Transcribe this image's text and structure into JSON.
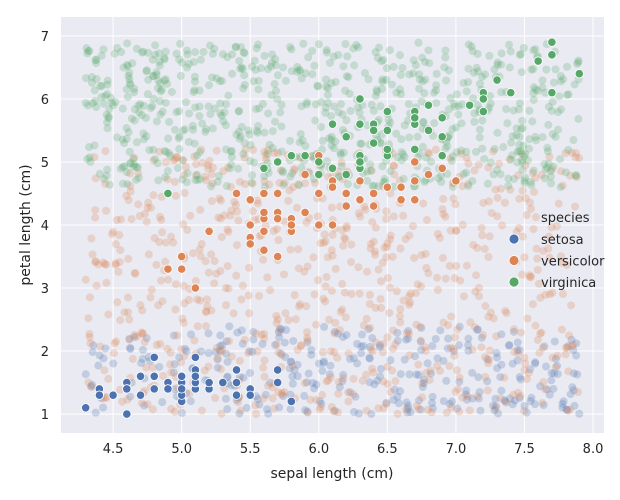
{
  "chart_data": {
    "type": "scatter",
    "title": "",
    "xlabel": "sepal length (cm)",
    "ylabel": "petal length (cm)",
    "xlim": [
      4.12,
      8.08
    ],
    "ylim": [
      0.7,
      7.3
    ],
    "x_ticks": [
      "4.5",
      "5.0",
      "5.5",
      "6.0",
      "6.5",
      "7.0",
      "7.5",
      "8.0"
    ],
    "y_ticks": [
      "1",
      "2",
      "3",
      "4",
      "5",
      "6",
      "7"
    ],
    "grid": true,
    "legend": {
      "title": "species",
      "position": "right",
      "entries": [
        "setosa",
        "versicolor",
        "virginica"
      ]
    },
    "background_regions": [
      {
        "class": "setosa",
        "x_range": [
          4.3,
          7.9
        ],
        "y_range": [
          1.0,
          2.4
        ],
        "density": "medium",
        "alpha": 0.25
      },
      {
        "class": "versicolor",
        "x_range": [
          4.3,
          7.9
        ],
        "y_range": [
          1.0,
          5.2
        ],
        "density": "high",
        "alpha": 0.25
      },
      {
        "class": "virginica",
        "x_range": [
          4.3,
          7.9
        ],
        "y_range": [
          4.6,
          6.9
        ],
        "density": "high",
        "alpha": 0.25
      }
    ],
    "series": [
      {
        "name": "setosa",
        "color": "#4c72b0",
        "points": [
          [
            5.1,
            1.4
          ],
          [
            4.9,
            1.4
          ],
          [
            4.7,
            1.3
          ],
          [
            4.6,
            1.5
          ],
          [
            5.0,
            1.4
          ],
          [
            5.4,
            1.7
          ],
          [
            4.6,
            1.4
          ],
          [
            5.0,
            1.5
          ],
          [
            4.4,
            1.4
          ],
          [
            4.9,
            1.5
          ],
          [
            5.4,
            1.5
          ],
          [
            4.8,
            1.6
          ],
          [
            4.8,
            1.4
          ],
          [
            4.3,
            1.1
          ],
          [
            5.8,
            1.2
          ],
          [
            5.7,
            1.5
          ],
          [
            5.4,
            1.3
          ],
          [
            5.1,
            1.4
          ],
          [
            5.7,
            1.7
          ],
          [
            5.1,
            1.5
          ],
          [
            5.4,
            1.7
          ],
          [
            5.1,
            1.5
          ],
          [
            4.6,
            1.0
          ],
          [
            5.1,
            1.7
          ],
          [
            4.8,
            1.9
          ],
          [
            5.0,
            1.6
          ],
          [
            5.0,
            1.6
          ],
          [
            5.2,
            1.5
          ],
          [
            5.2,
            1.4
          ],
          [
            4.7,
            1.6
          ],
          [
            4.8,
            1.6
          ],
          [
            5.4,
            1.5
          ],
          [
            5.2,
            1.5
          ],
          [
            5.5,
            1.4
          ],
          [
            4.9,
            1.5
          ],
          [
            5.0,
            1.2
          ],
          [
            5.5,
            1.3
          ],
          [
            4.9,
            1.4
          ],
          [
            4.4,
            1.3
          ],
          [
            5.1,
            1.5
          ],
          [
            5.0,
            1.3
          ],
          [
            4.5,
            1.3
          ],
          [
            4.4,
            1.3
          ],
          [
            5.0,
            1.6
          ],
          [
            5.1,
            1.9
          ],
          [
            4.8,
            1.4
          ],
          [
            5.1,
            1.6
          ],
          [
            4.6,
            1.4
          ],
          [
            5.3,
            1.5
          ],
          [
            5.0,
            1.4
          ]
        ]
      },
      {
        "name": "versicolor",
        "color": "#dd8452",
        "points": [
          [
            7.0,
            4.7
          ],
          [
            6.4,
            4.5
          ],
          [
            6.9,
            4.9
          ],
          [
            5.5,
            4.0
          ],
          [
            6.5,
            4.6
          ],
          [
            5.7,
            4.5
          ],
          [
            6.3,
            4.7
          ],
          [
            4.9,
            3.3
          ],
          [
            6.6,
            4.6
          ],
          [
            5.2,
            3.9
          ],
          [
            5.0,
            3.5
          ],
          [
            5.9,
            4.2
          ],
          [
            6.0,
            4.0
          ],
          [
            6.1,
            4.7
          ],
          [
            5.6,
            3.6
          ],
          [
            6.7,
            4.4
          ],
          [
            5.6,
            4.5
          ],
          [
            5.8,
            4.1
          ],
          [
            6.2,
            4.5
          ],
          [
            5.6,
            3.9
          ],
          [
            5.9,
            4.8
          ],
          [
            6.1,
            4.0
          ],
          [
            6.3,
            4.9
          ],
          [
            6.1,
            4.7
          ],
          [
            6.4,
            4.3
          ],
          [
            6.6,
            4.4
          ],
          [
            6.8,
            4.8
          ],
          [
            6.7,
            5.0
          ],
          [
            6.0,
            4.5
          ],
          [
            5.7,
            3.5
          ],
          [
            5.5,
            3.8
          ],
          [
            5.5,
            3.7
          ],
          [
            5.8,
            3.9
          ],
          [
            6.0,
            5.1
          ],
          [
            5.4,
            4.5
          ],
          [
            6.0,
            4.5
          ],
          [
            6.7,
            4.7
          ],
          [
            6.3,
            4.4
          ],
          [
            5.6,
            4.1
          ],
          [
            5.5,
            4.0
          ],
          [
            5.5,
            4.4
          ],
          [
            6.1,
            4.6
          ],
          [
            5.8,
            4.0
          ],
          [
            5.0,
            3.3
          ],
          [
            5.6,
            4.2
          ],
          [
            5.7,
            4.2
          ],
          [
            5.7,
            4.2
          ],
          [
            6.2,
            4.3
          ],
          [
            5.1,
            3.0
          ],
          [
            5.7,
            4.1
          ]
        ]
      },
      {
        "name": "virginica",
        "color": "#55a868",
        "points": [
          [
            6.3,
            6.0
          ],
          [
            5.8,
            5.1
          ],
          [
            7.1,
            5.9
          ],
          [
            6.3,
            5.6
          ],
          [
            6.5,
            5.8
          ],
          [
            7.6,
            6.6
          ],
          [
            4.9,
            4.5
          ],
          [
            7.3,
            6.3
          ],
          [
            6.7,
            5.8
          ],
          [
            7.2,
            6.1
          ],
          [
            6.5,
            5.1
          ],
          [
            6.4,
            5.3
          ],
          [
            6.8,
            5.5
          ],
          [
            5.7,
            5.0
          ],
          [
            5.8,
            5.1
          ],
          [
            6.4,
            5.3
          ],
          [
            6.5,
            5.5
          ],
          [
            7.7,
            6.7
          ],
          [
            7.7,
            6.9
          ],
          [
            6.0,
            5.0
          ],
          [
            6.9,
            5.7
          ],
          [
            5.6,
            4.9
          ],
          [
            7.7,
            6.7
          ],
          [
            6.3,
            4.9
          ],
          [
            6.7,
            5.7
          ],
          [
            7.2,
            6.0
          ],
          [
            6.2,
            4.8
          ],
          [
            6.1,
            4.9
          ],
          [
            6.4,
            5.6
          ],
          [
            7.2,
            5.8
          ],
          [
            7.4,
            6.1
          ],
          [
            7.9,
            6.4
          ],
          [
            6.4,
            5.6
          ],
          [
            6.3,
            5.1
          ],
          [
            6.1,
            5.6
          ],
          [
            7.7,
            6.1
          ],
          [
            6.3,
            5.6
          ],
          [
            6.4,
            5.5
          ],
          [
            6.0,
            4.8
          ],
          [
            6.9,
            5.4
          ],
          [
            6.7,
            5.6
          ],
          [
            6.9,
            5.1
          ],
          [
            5.8,
            5.1
          ],
          [
            6.8,
            5.9
          ],
          [
            6.7,
            5.7
          ],
          [
            6.7,
            5.2
          ],
          [
            6.3,
            5.0
          ],
          [
            6.5,
            5.2
          ],
          [
            6.2,
            5.4
          ],
          [
            5.9,
            5.1
          ]
        ]
      }
    ]
  }
}
